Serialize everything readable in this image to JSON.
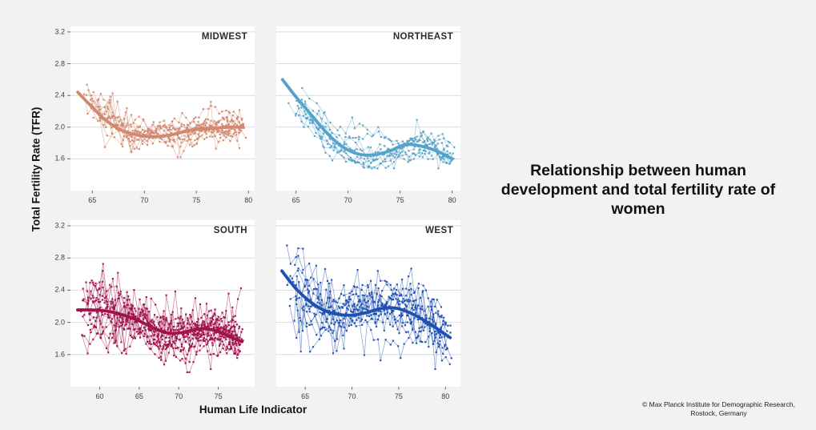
{
  "title": "Relationship between human development and total fertility rate of women",
  "credit": "© Max Planck Institute for Demographic Research, Rostock, Germany",
  "chart_data": {
    "type": "scatter",
    "description": "Small-multiple (2x2 facet) scatter plot of state-level trajectories: total fertility rate vs Human Life Indicator for four US regions. Thin lines with small square markers connect yearly observations per state; a thick smoothed (LOESS-style) trend curve overlays each panel. Horizontal gridlines only; free x scales per panel, shared y scale.",
    "xlabel": "Human Life Indicator",
    "ylabel": "Total Fertility Rate (TFR)",
    "y_ticks": [
      1.6,
      2.0,
      2.4,
      2.8,
      3.2
    ],
    "ylim": [
      1.2,
      3.27
    ],
    "grid": "horizontal-only",
    "legend": "none",
    "colors": {
      "background": "#F2F2F2",
      "panel": "#FFFFFF",
      "gridline": "#DBDBDB",
      "tick_text": "#3D3D3D",
      "title_text": "#111111"
    },
    "panels": [
      {
        "name": "MIDWEST",
        "color": "#D2886E",
        "x_ticks": [
          65,
          70,
          75,
          80
        ],
        "xlim": [
          62.9,
          80.6
        ],
        "trend": [
          [
            63.6,
            2.44
          ],
          [
            65,
            2.25
          ],
          [
            66,
            2.12
          ],
          [
            67,
            2.02
          ],
          [
            68,
            1.95
          ],
          [
            69,
            1.91
          ],
          [
            70,
            1.885
          ],
          [
            71,
            1.88
          ],
          [
            72,
            1.89
          ],
          [
            73,
            1.915
          ],
          [
            74,
            1.95
          ],
          [
            75,
            1.97
          ],
          [
            76,
            1.985
          ],
          [
            77,
            1.99
          ],
          [
            78,
            2.0
          ],
          [
            79.5,
            2.0
          ]
        ],
        "scatter_profile": {
          "n_trajectories": 13,
          "sigma": 0.1,
          "offset_spread": 0.5,
          "spike_prob": 0.1,
          "spike_amp": 0.55,
          "y_min": 1.62,
          "y_max": 2.8,
          "seed": 11
        }
      },
      {
        "name": "NORTHEAST",
        "color": "#55A3C8",
        "x_ticks": [
          65,
          70,
          75,
          80
        ],
        "xlim": [
          63.1,
          80.8
        ],
        "trend": [
          [
            63.7,
            2.6
          ],
          [
            65,
            2.38
          ],
          [
            66.5,
            2.15
          ],
          [
            68,
            1.92
          ],
          [
            69.5,
            1.75
          ],
          [
            71,
            1.66
          ],
          [
            72.5,
            1.65
          ],
          [
            74,
            1.7
          ],
          [
            75.5,
            1.78
          ],
          [
            77,
            1.76
          ],
          [
            78.5,
            1.7
          ],
          [
            80,
            1.6
          ]
        ],
        "scatter_profile": {
          "n_trajectories": 10,
          "sigma": 0.09,
          "offset_spread": 0.45,
          "spike_prob": 0.08,
          "spike_amp": 0.4,
          "y_min": 1.48,
          "y_max": 2.52,
          "seed": 22
        }
      },
      {
        "name": "SOUTH",
        "color": "#A1114A",
        "x_ticks": [
          60,
          65,
          70,
          75
        ],
        "xlim": [
          56.3,
          79.6
        ],
        "trend": [
          [
            57.2,
            2.155
          ],
          [
            58.5,
            2.155
          ],
          [
            60,
            2.15
          ],
          [
            61.5,
            2.13
          ],
          [
            63,
            2.09
          ],
          [
            64.5,
            2.04
          ],
          [
            66,
            1.97
          ],
          [
            67.5,
            1.9
          ],
          [
            69,
            1.865
          ],
          [
            70.5,
            1.875
          ],
          [
            72,
            1.91
          ],
          [
            73.5,
            1.92
          ],
          [
            75,
            1.885
          ],
          [
            76.5,
            1.82
          ],
          [
            78,
            1.76
          ]
        ],
        "scatter_profile": {
          "n_trajectories": 17,
          "sigma": 0.14,
          "offset_spread": 0.6,
          "spike_prob": 0.14,
          "spike_amp": 0.8,
          "y_min": 1.38,
          "y_max": 2.98,
          "seed": 33
        }
      },
      {
        "name": "WEST",
        "color": "#1E4FB2",
        "x_ticks": [
          65,
          70,
          75,
          80
        ],
        "xlim": [
          61.9,
          81.6
        ],
        "trend": [
          [
            62.5,
            2.64
          ],
          [
            64,
            2.42
          ],
          [
            65.5,
            2.26
          ],
          [
            67,
            2.15
          ],
          [
            68.5,
            2.1
          ],
          [
            70,
            2.09
          ],
          [
            71.5,
            2.12
          ],
          [
            73,
            2.17
          ],
          [
            74.5,
            2.18
          ],
          [
            76,
            2.13
          ],
          [
            77.5,
            2.04
          ],
          [
            79,
            1.93
          ],
          [
            80.5,
            1.81
          ]
        ],
        "scatter_profile": {
          "n_trajectories": 14,
          "sigma": 0.18,
          "offset_spread": 0.7,
          "spike_prob": 0.13,
          "spike_amp": 0.8,
          "y_min": 1.42,
          "y_max": 3.22,
          "seed": 44
        }
      }
    ]
  }
}
